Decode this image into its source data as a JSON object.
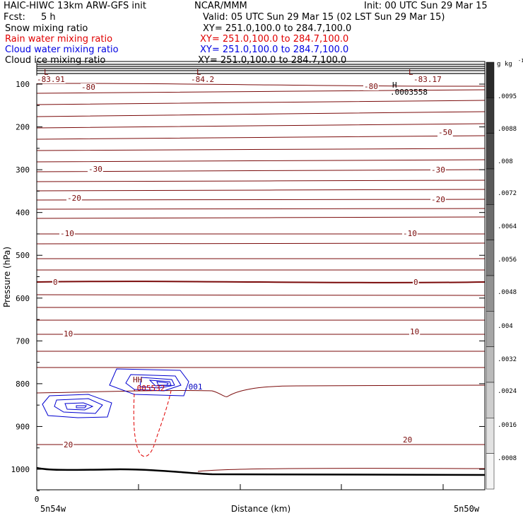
{
  "header": {
    "model": "HAIC-HIWC 13km ARW-GFS init",
    "org": "NCAR/MMM",
    "init": "Init: 00 UTC Sun 29 Mar 15",
    "fcst_label": "Fcst:",
    "fcst_value": "5 h",
    "valid": "Valid: 05 UTC Sun 29 Mar 15 (02 LST Sun 29 Mar 15)",
    "fields": [
      {
        "name": "Snow mixing ratio",
        "xy": "XY= 251.0,100.0 to 284.7,100.0",
        "color": "#000000"
      },
      {
        "name": "Rain water mixing ratio",
        "xy": "XY= 251.0,100.0 to 284.7,100.0",
        "color": "#e00000"
      },
      {
        "name": "Cloud water mixing ratio",
        "xy": "XY= 251.0,100.0 to 284.7,100.0",
        "color": "#0000e0"
      },
      {
        "name": "Cloud ice mixing ratio",
        "xy": "XY= 251.0,100.0 to 284.7,100.0",
        "color": "#000000"
      }
    ]
  },
  "chart_data": {
    "type": "contour",
    "ylabel": "Pressure (hPa)",
    "xlabel": "Distance (km)",
    "x_tick_label": "0",
    "x_left_label": "5n54w",
    "x_right_label": "5n50w",
    "yticks": [
      100,
      200,
      300,
      400,
      500,
      600,
      700,
      800,
      900,
      1000
    ],
    "ylim": [
      1050,
      50
    ],
    "colorbar": {
      "unit": "g kg",
      "unit_exp": "-1",
      "ticks": [
        ".0095",
        ".0088",
        ".008",
        ".0072",
        ".0064",
        ".0056",
        ".0048",
        ".004",
        ".0032",
        ".0024",
        ".0016",
        ".0008"
      ]
    },
    "temperature_labels": [
      {
        "text": "-83.91"
      },
      {
        "text": "-84.2"
      },
      {
        "text": "-83.17"
      },
      {
        "text": "-80"
      },
      {
        "text": "-80"
      },
      {
        "text": "-50"
      },
      {
        "text": "-30"
      },
      {
        "text": "-30"
      },
      {
        "text": "-20"
      },
      {
        "text": "-20"
      },
      {
        "text": "-10"
      },
      {
        "text": "-10"
      },
      {
        "text": "0"
      },
      {
        "text": "0"
      },
      {
        "text": "10"
      },
      {
        "text": "10"
      },
      {
        "text": "20"
      },
      {
        "text": "20"
      }
    ],
    "low_markers": [
      "L",
      "L",
      "L"
    ],
    "high_marker": {
      "label": "H",
      "value": ".0003558"
    },
    "cloud_labels": {
      "hh": "HH",
      "max": ".005532",
      "contour": ".001"
    }
  }
}
